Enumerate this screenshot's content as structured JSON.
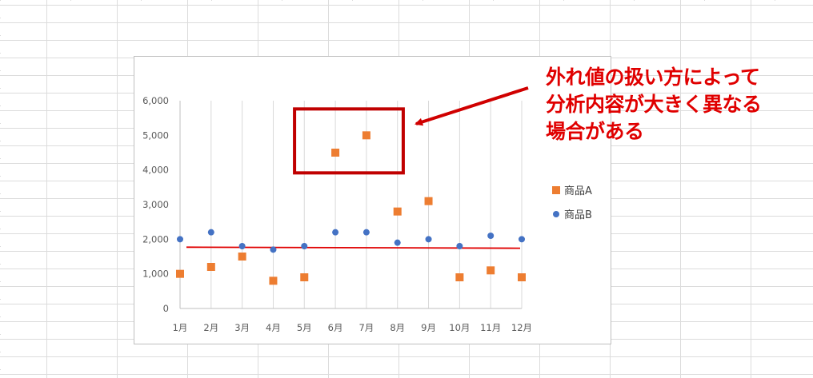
{
  "annotation": {
    "lines": [
      "外れ値の扱い方によって",
      "分析内容が大きく異なる",
      "場合がある"
    ],
    "color": "#e00000"
  },
  "chart_data": {
    "type": "scatter",
    "categories": [
      "1月",
      "2月",
      "3月",
      "4月",
      "5月",
      "6月",
      "7月",
      "8月",
      "9月",
      "10月",
      "11月",
      "12月"
    ],
    "series": [
      {
        "name": "商品A",
        "marker": "square",
        "color": "#ed7d31",
        "values": [
          1000,
          1200,
          1500,
          800,
          900,
          4500,
          5000,
          2800,
          3100,
          900,
          1100,
          900
        ]
      },
      {
        "name": "商品B",
        "marker": "circle",
        "color": "#4472c4",
        "values": [
          2000,
          2200,
          1800,
          1700,
          1800,
          2200,
          2200,
          1900,
          2000,
          1800,
          2100,
          2000
        ]
      }
    ],
    "trendline": {
      "color": "#e00000",
      "start": 1770,
      "end": 1740
    },
    "y_ticks": [
      "0",
      "1,000",
      "2,000",
      "3,000",
      "4,000",
      "5,000",
      "6,000"
    ],
    "ylim": [
      0,
      6000
    ],
    "grid": "vertical",
    "legend": "right",
    "highlight": {
      "categories": [
        "6月",
        "7月"
      ],
      "color": "#c00000"
    }
  }
}
